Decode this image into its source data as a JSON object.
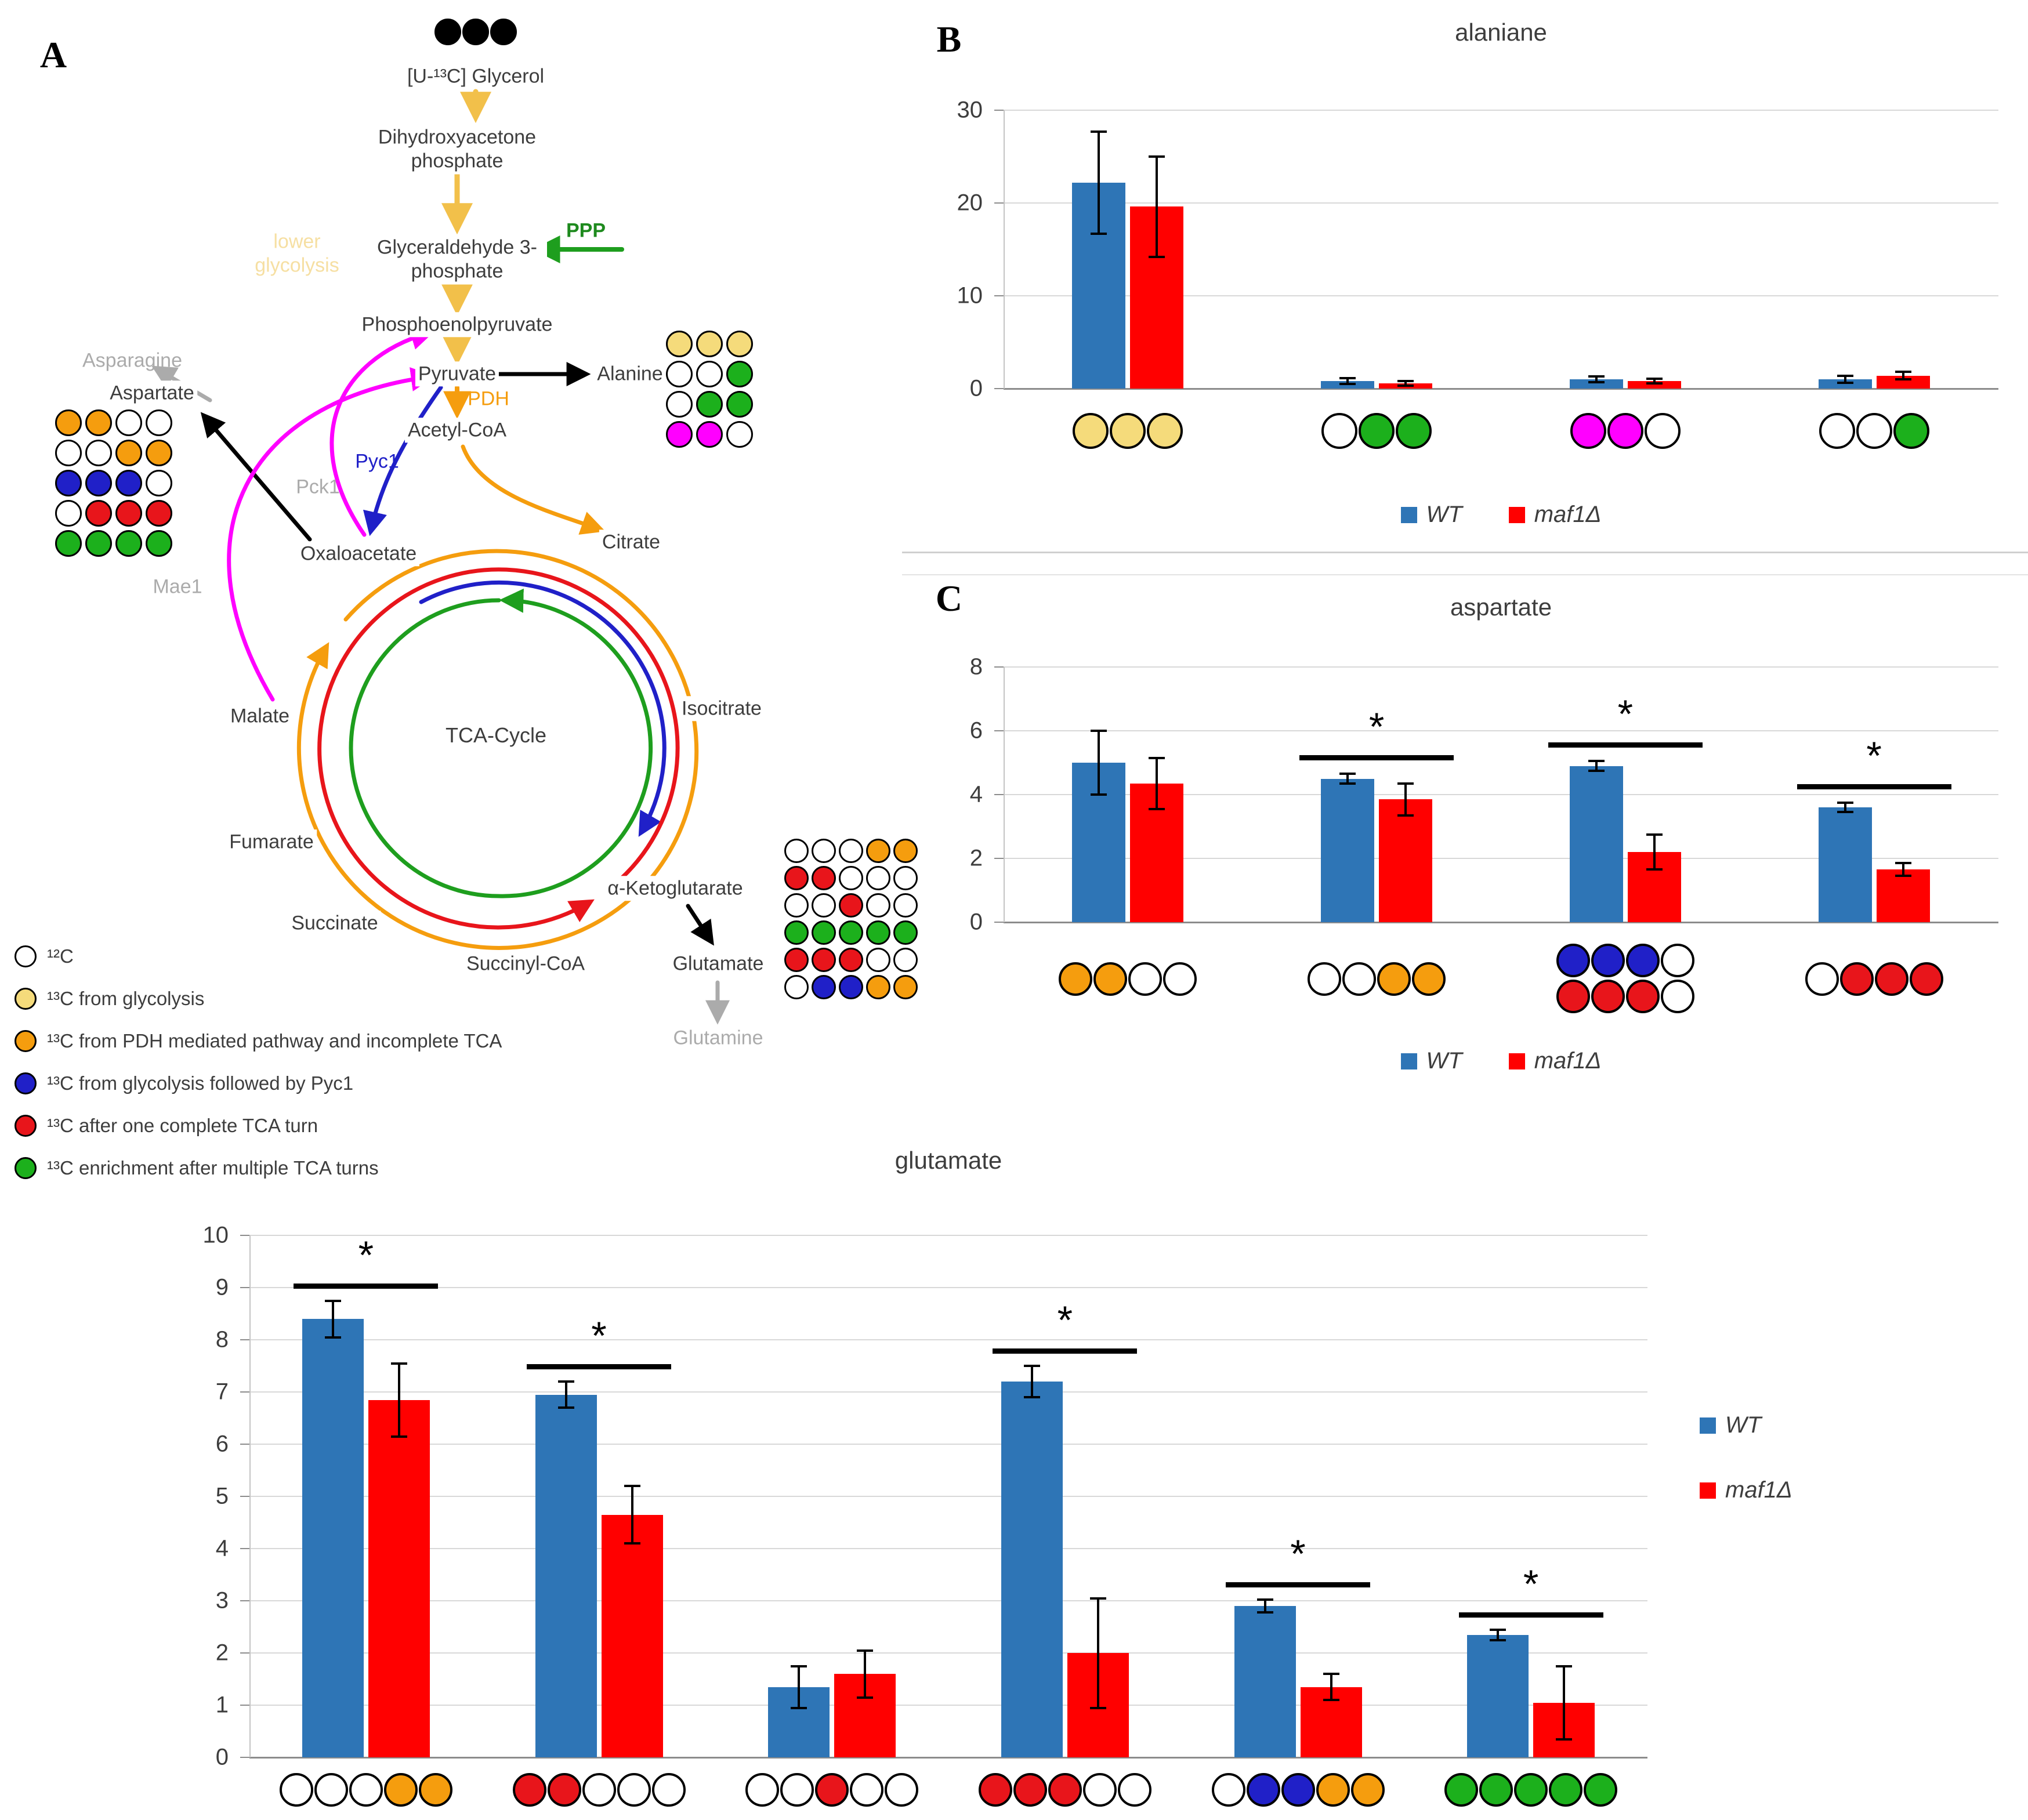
{
  "palette": {
    "white": "#FFFFFF",
    "yellow": "#F5DB7B",
    "orange": "#F59D0E",
    "blue": "#2020C8",
    "red": "#E8151B",
    "green": "#1CB01C",
    "magenta": "#FF00FF",
    "black": "#000000",
    "wt_bar": "#2E75B6",
    "maf_bar": "#FF0000"
  },
  "sig_marker": "*",
  "panels": {
    "b_label": "B",
    "c_label": "C"
  },
  "panelA": {
    "label": "A",
    "nodes": {
      "glycerol": "[U-¹³C] Glycerol",
      "dhap": "Dihydroxyacetone phosphate",
      "lower_glycolysis": "lower glycolysis",
      "gap": "Glyceraldehyde 3-phosphate",
      "ppp": "PPP",
      "pep": "Phosphoenolpyruvate",
      "pyruvate": "Pyruvate",
      "alanine": "Alanine",
      "pdh": "PDH",
      "acetyl_coa": "Acetyl-CoA",
      "pyc1": "Pyc1",
      "pck1": "Pck1",
      "asparagine": "Asparagine",
      "aspartate": "Aspartate",
      "mae1": "Mae1",
      "oxaloacetate": "Oxaloacetate",
      "citrate": "Citrate",
      "isocitrate": "Isocitrate",
      "tca": "TCA-Cycle",
      "malate": "Malate",
      "fumarate": "Fumarate",
      "succinate": "Succinate",
      "succinyl_coa": "Succinyl-CoA",
      "akg": "α-Ketoglutarate",
      "glutamate": "Glutamate",
      "glutamine": "Glutamine"
    },
    "glycerol_dots": [
      [
        "black",
        "black",
        "black"
      ]
    ],
    "alanine_grid": [
      [
        "yellow",
        "yellow",
        "yellow"
      ],
      [
        "white",
        "white",
        "green"
      ],
      [
        "white",
        "green",
        "green"
      ],
      [
        "magenta",
        "magenta",
        "white"
      ]
    ],
    "aspartate_grid": [
      [
        "orange",
        "orange",
        "white",
        "white"
      ],
      [
        "white",
        "white",
        "orange",
        "orange"
      ],
      [
        "blue",
        "blue",
        "blue",
        "white"
      ],
      [
        "white",
        "red",
        "red",
        "red"
      ],
      [
        "green",
        "green",
        "green",
        "green"
      ]
    ],
    "glutamate_grid": [
      [
        "white",
        "white",
        "white",
        "orange",
        "orange"
      ],
      [
        "red",
        "red",
        "white",
        "white",
        "white"
      ],
      [
        "white",
        "white",
        "red",
        "white",
        "white"
      ],
      [
        "green",
        "green",
        "green",
        "green",
        "green"
      ],
      [
        "red",
        "red",
        "red",
        "white",
        "white"
      ],
      [
        "white",
        "blue",
        "blue",
        "orange",
        "orange"
      ]
    ],
    "legend": [
      {
        "color": "white",
        "text": "¹²C"
      },
      {
        "color": "yellow",
        "text": "¹³C from glycolysis"
      },
      {
        "color": "orange",
        "text": "¹³C from PDH mediated pathway and incomplete TCA"
      },
      {
        "color": "blue",
        "text": "¹³C from glycolysis followed by Pyc1"
      },
      {
        "color": "red",
        "text": "¹³C after one complete TCA turn"
      },
      {
        "color": "green",
        "text": "¹³C enrichment after multiple TCA turns"
      }
    ]
  },
  "chart_data": [
    {
      "id": "alanine",
      "type": "bar",
      "panel": "B",
      "title": "alaniane",
      "ylim": [
        0,
        30
      ],
      "yticks": [
        0,
        10,
        20,
        30
      ],
      "series": [
        {
          "name": "WT",
          "color": "wt_bar"
        },
        {
          "name": "maf1Δ",
          "color": "maf_bar"
        }
      ],
      "groups": [
        {
          "circles": [
            [
              "yellow",
              "yellow",
              "yellow"
            ]
          ],
          "wt": 22.2,
          "wt_err": 5.5,
          "maf": 19.6,
          "maf_err": 5.4,
          "sig": false
        },
        {
          "circles": [
            [
              "white",
              "green",
              "green"
            ]
          ],
          "wt": 0.8,
          "wt_err": 0.3,
          "maf": 0.55,
          "maf_err": 0.25,
          "sig": false
        },
        {
          "circles": [
            [
              "magenta",
              "magenta",
              "white"
            ]
          ],
          "wt": 1.0,
          "wt_err": 0.3,
          "maf": 0.8,
          "maf_err": 0.25,
          "sig": false
        },
        {
          "circles": [
            [
              "white",
              "white",
              "green"
            ]
          ],
          "wt": 1.0,
          "wt_err": 0.35,
          "maf": 1.4,
          "maf_err": 0.4,
          "sig": false
        }
      ]
    },
    {
      "id": "aspartate",
      "type": "bar",
      "panel": "C",
      "title": "aspartate",
      "ylim": [
        0,
        8
      ],
      "yticks": [
        0,
        2,
        4,
        6,
        8
      ],
      "series": [
        {
          "name": "WT",
          "color": "wt_bar"
        },
        {
          "name": "maf1Δ",
          "color": "maf_bar"
        }
      ],
      "groups": [
        {
          "circles": [
            [
              "orange",
              "orange",
              "white",
              "white"
            ]
          ],
          "wt": 5.0,
          "wt_err": 1.0,
          "maf": 4.35,
          "maf_err": 0.8,
          "sig": false
        },
        {
          "circles": [
            [
              "white",
              "white",
              "orange",
              "orange"
            ]
          ],
          "wt": 4.5,
          "wt_err": 0.15,
          "maf": 3.85,
          "maf_err": 0.5,
          "sig": true
        },
        {
          "circles": [
            [
              "blue",
              "blue",
              "blue",
              "white"
            ],
            [
              "red",
              "red",
              "red",
              "white"
            ]
          ],
          "wt": 4.9,
          "wt_err": 0.15,
          "maf": 2.2,
          "maf_err": 0.55,
          "sig": true
        },
        {
          "circles": [
            [
              "white",
              "red",
              "red",
              "red"
            ]
          ],
          "wt": 3.6,
          "wt_err": 0.15,
          "maf": 1.65,
          "maf_err": 0.2,
          "sig": true
        }
      ]
    },
    {
      "id": "glutamate",
      "type": "bar",
      "panel": "",
      "title": "glutamate",
      "ylim": [
        0,
        10
      ],
      "yticks": [
        0,
        1,
        2,
        3,
        4,
        5,
        6,
        7,
        8,
        9,
        10
      ],
      "series": [
        {
          "name": "WT",
          "color": "wt_bar"
        },
        {
          "name": "maf1Δ",
          "color": "maf_bar"
        }
      ],
      "groups": [
        {
          "circles": [
            [
              "white",
              "white",
              "white",
              "orange",
              "orange"
            ]
          ],
          "wt": 8.4,
          "wt_err": 0.35,
          "maf": 6.85,
          "maf_err": 0.7,
          "sig": true
        },
        {
          "circles": [
            [
              "red",
              "red",
              "white",
              "white",
              "white"
            ]
          ],
          "wt": 6.95,
          "wt_err": 0.25,
          "maf": 4.65,
          "maf_err": 0.55,
          "sig": true
        },
        {
          "circles": [
            [
              "white",
              "white",
              "red",
              "white",
              "white"
            ]
          ],
          "wt": 1.35,
          "wt_err": 0.4,
          "maf": 1.6,
          "maf_err": 0.45,
          "sig": false
        },
        {
          "circles": [
            [
              "red",
              "red",
              "red",
              "white",
              "white"
            ]
          ],
          "wt": 7.2,
          "wt_err": 0.3,
          "maf": 2.0,
          "maf_err": 1.05,
          "sig": true
        },
        {
          "circles": [
            [
              "white",
              "blue",
              "blue",
              "orange",
              "orange"
            ]
          ],
          "wt": 2.9,
          "wt_err": 0.12,
          "maf": 1.35,
          "maf_err": 0.25,
          "sig": true
        },
        {
          "circles": [
            [
              "green",
              "green",
              "green",
              "green",
              "green"
            ]
          ],
          "wt": 2.35,
          "wt_err": 0.1,
          "maf": 1.05,
          "maf_err": 0.7,
          "sig": true
        }
      ]
    }
  ]
}
